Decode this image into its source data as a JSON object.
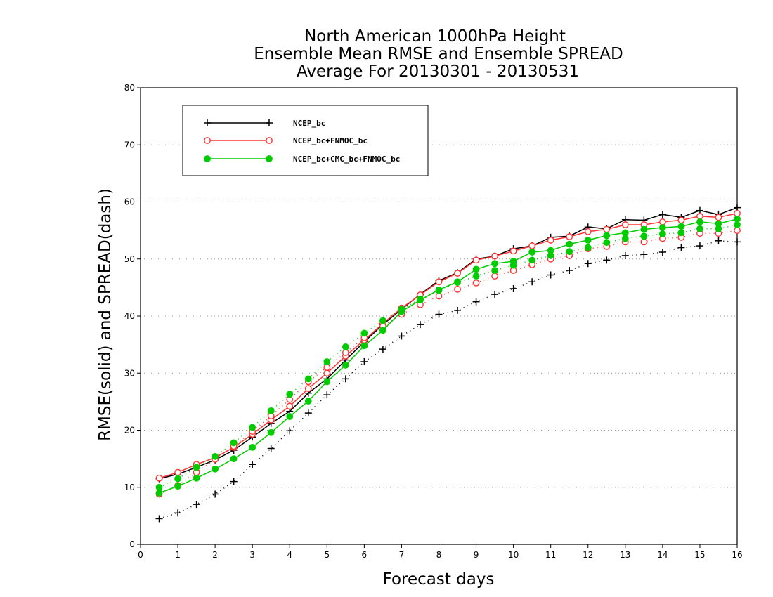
{
  "chart_data": {
    "type": "line",
    "title_lines": [
      "North American 1000hPa Height",
      "Ensemble Mean RMSE and Ensemble SPREAD",
      "Average For 20130301 - 20130531"
    ],
    "xlabel": "Forecast days",
    "ylabel": "RMSE(solid) and SPREAD(dash)",
    "xlim": [
      0,
      16
    ],
    "ylim": [
      0,
      80
    ],
    "xticks": [
      "0",
      "1",
      "2",
      "3",
      "4",
      "5",
      "6",
      "7",
      "8",
      "9",
      "10",
      "11",
      "12",
      "13",
      "14",
      "15",
      "16"
    ],
    "yticks": [
      "0",
      "10",
      "20",
      "30",
      "40",
      "50",
      "60",
      "70",
      "80"
    ],
    "grid": "horizontal dotted",
    "legend_position": "top-left",
    "x": [
      0.5,
      1,
      1.5,
      2,
      2.5,
      3,
      3.5,
      4,
      4.5,
      5,
      5.5,
      6,
      6.5,
      7,
      7.5,
      8,
      8.5,
      9,
      9.5,
      10,
      10.5,
      11,
      11.5,
      12,
      12.5,
      13,
      13.5,
      14,
      14.5,
      15,
      15.5,
      16
    ],
    "series": [
      {
        "name": "NCEP_bc",
        "color": "#000000",
        "marker": "plus",
        "rmse": [
          11.5,
          12.3,
          13.5,
          14.8,
          16.5,
          18.8,
          21.2,
          23.3,
          26.5,
          29.0,
          32.3,
          35.5,
          38.5,
          41.2,
          43.8,
          46.2,
          47.6,
          50.0,
          50.5,
          51.8,
          52.3,
          53.8,
          54.0,
          55.6,
          55.3,
          56.9,
          56.8,
          57.8,
          57.3,
          58.5,
          57.8,
          59.0
        ],
        "spread": [
          4.5,
          5.5,
          7.0,
          8.8,
          11.0,
          14.0,
          16.8,
          19.9,
          23.0,
          26.2,
          29.0,
          32.0,
          34.2,
          36.5,
          38.5,
          40.3,
          41.0,
          42.5,
          43.8,
          44.8,
          46.0,
          47.2,
          48.0,
          49.2,
          49.8,
          50.6,
          50.8,
          51.2,
          52.0,
          52.3,
          53.2,
          53.0
        ]
      },
      {
        "name": "NCEP_bc+FNMOC_bc",
        "color": "#ff3333",
        "marker": "open-circle",
        "rmse": [
          11.6,
          12.6,
          14.0,
          15.2,
          17.0,
          19.3,
          21.8,
          24.2,
          27.3,
          30.0,
          33.0,
          35.8,
          38.7,
          41.4,
          43.7,
          46.0,
          47.5,
          49.8,
          50.5,
          51.4,
          52.3,
          53.3,
          53.9,
          54.8,
          55.2,
          56.0,
          56.0,
          56.5,
          56.8,
          57.5,
          57.3,
          58.0
        ],
        "spread": [
          8.8,
          10.3,
          12.6,
          14.9,
          17.2,
          19.8,
          22.5,
          25.4,
          28.5,
          31.0,
          33.6,
          36.2,
          38.2,
          40.3,
          42.0,
          43.5,
          44.7,
          45.8,
          47.0,
          48.0,
          49.0,
          50.0,
          50.6,
          51.8,
          52.2,
          53.0,
          53.0,
          53.6,
          53.8,
          54.5,
          54.5,
          55.0
        ]
      },
      {
        "name": "NCEP_bc+CMC_bc+FNMOC_bc",
        "color": "#00cc00",
        "marker": "filled-circle",
        "rmse": [
          9.0,
          10.2,
          11.6,
          13.2,
          15.0,
          17.0,
          19.6,
          22.4,
          25.1,
          28.5,
          31.4,
          34.8,
          37.5,
          40.8,
          42.8,
          44.6,
          46.0,
          48.2,
          49.2,
          49.6,
          51.2,
          51.5,
          52.6,
          53.3,
          54.1,
          54.6,
          55.2,
          55.5,
          55.7,
          56.5,
          56.2,
          57.0
        ],
        "spread": [
          10.0,
          11.5,
          13.5,
          15.4,
          17.8,
          20.5,
          23.4,
          26.3,
          29.0,
          32.0,
          34.6,
          37.0,
          39.2,
          41.2,
          43.0,
          44.5,
          45.9,
          47.0,
          48.0,
          48.9,
          49.8,
          50.6,
          51.3,
          52.0,
          52.9,
          53.6,
          54.0,
          54.4,
          54.6,
          55.3,
          55.3,
          56.0
        ]
      }
    ]
  }
}
